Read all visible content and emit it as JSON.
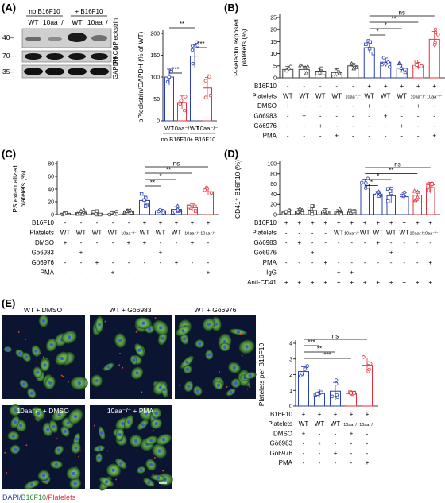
{
  "colors": {
    "blue": "#2a3fb2",
    "red": "#e8303c",
    "green": "#1f8f2f",
    "gray": "#444444"
  },
  "panels": {
    "A": {
      "label": "(A)",
      "blot": {
        "group_no": "no B16F10",
        "group_plus": "+ B16F10",
        "lanes": [
          "WT",
          "10aa⁻/⁻",
          "WT",
          "10aa⁻/⁻"
        ],
        "markers": [
          "40–",
          "70–",
          "35–"
        ],
        "bands": [
          "pPleckstrin",
          "PKCδ",
          "GAPDH"
        ]
      },
      "ylabel": "pPleckstrin/GAPDH (% of WT)",
      "ticks": [
        "0",
        "50",
        "100",
        "150",
        "200"
      ],
      "xtick_labels": [
        "WT",
        "10aa⁻/⁻",
        "WT",
        "10aa⁻/⁻"
      ],
      "group_labels": [
        "no B16F10",
        "+ B16F10"
      ],
      "sig": [
        "**",
        "***",
        "***"
      ],
      "chart_data": {
        "type": "bar",
        "categories": [
          "WT no B16F10",
          "10aa-/- no B16F10",
          "WT + B16F10",
          "10aa-/- + B16F10"
        ],
        "values": [
          100,
          42,
          148,
          75
        ],
        "ylim": [
          0,
          200
        ]
      }
    },
    "B": {
      "label": "(B)",
      "ylabel": "P-selectin exposed\nplatelets (%)",
      "ticks": [
        "0",
        "5",
        "10",
        "15",
        "20",
        "25"
      ],
      "sig": [
        "ns",
        "**",
        "*",
        "*"
      ],
      "rows": [
        {
          "name": "B16F10",
          "vals": [
            "-",
            "-",
            "-",
            "-",
            "-",
            "+",
            "+",
            "+",
            "+",
            "+"
          ]
        },
        {
          "name": "Platelets",
          "vals": [
            "WT",
            "WT",
            "WT",
            "WT",
            "10aa⁻/⁻",
            "WT",
            "WT",
            "WT",
            "10aa⁻/⁻",
            "10aa⁻/⁻"
          ]
        },
        {
          "name": "DMSO",
          "vals": [
            "+",
            "-",
            "-",
            "-",
            "-",
            "+",
            "-",
            "-",
            "+",
            "-"
          ]
        },
        {
          "name": "Gö6983",
          "vals": [
            "-",
            "+",
            "-",
            "-",
            "-",
            "-",
            "+",
            "-",
            "-",
            "-"
          ]
        },
        {
          "name": "Gö6976",
          "vals": [
            "-",
            "-",
            "+",
            "-",
            "-",
            "-",
            "-",
            "+",
            "-",
            "-"
          ]
        },
        {
          "name": "PMA",
          "vals": [
            "-",
            "-",
            "-",
            "+",
            "-",
            "-",
            "-",
            "-",
            "-",
            "+"
          ]
        }
      ],
      "chart_data": {
        "type": "bar",
        "values": [
          3.5,
          3.5,
          2.8,
          2.2,
          5.0,
          12.5,
          6.5,
          4.0,
          5.0,
          16.0
        ],
        "ylim": [
          0,
          25
        ]
      }
    },
    "C": {
      "label": "(C)",
      "ylabel": "PS externalized\nplatelets (%)",
      "ticks": [
        "0",
        "20",
        "40",
        "60",
        "80"
      ],
      "sig": [
        "ns",
        "**",
        "*",
        "**"
      ],
      "rows": [
        {
          "name": "B16F10",
          "vals": [
            "-",
            "-",
            "-",
            "-",
            "-",
            "+",
            "+",
            "+",
            "+",
            "+"
          ]
        },
        {
          "name": "Platelets",
          "vals": [
            "WT",
            "WT",
            "WT",
            "WT",
            "10aa⁻/⁻",
            "WT",
            "WT",
            "WT",
            "10aa⁻/⁻",
            "10aa⁻/⁻"
          ]
        },
        {
          "name": "DMSO",
          "vals": [
            "+",
            "-",
            "-",
            "-",
            "+",
            "+",
            "-",
            "-",
            "+",
            "-"
          ]
        },
        {
          "name": "Gö6983",
          "vals": [
            "-",
            "+",
            "-",
            "-",
            "-",
            "-",
            "+",
            "-",
            "-",
            "-"
          ]
        },
        {
          "name": "Gö6976",
          "vals": [
            "-",
            "-",
            "+",
            "-",
            "-",
            "-",
            "-",
            "+",
            "-",
            "-"
          ]
        },
        {
          "name": "PMA",
          "vals": [
            "-",
            "-",
            "-",
            "+",
            "-",
            "-",
            "-",
            "-",
            "-",
            "+"
          ]
        }
      ],
      "chart_data": {
        "type": "bar",
        "values": [
          2,
          3,
          2,
          1,
          5,
          22,
          6,
          8,
          11,
          36
        ],
        "ylim": [
          0,
          80
        ]
      }
    },
    "D": {
      "label": "(D)",
      "ylabel": "CD41⁺ B16F10 (%)",
      "ticks": [
        "0",
        "20",
        "40",
        "60",
        "80",
        "100"
      ],
      "sig": [
        "ns",
        "**",
        "*",
        "*"
      ],
      "rows": [
        {
          "name": "B16F10",
          "vals": [
            "+",
            "+",
            "+",
            "+",
            "+",
            "+",
            "+",
            "+",
            "+",
            "+",
            "+",
            "+"
          ]
        },
        {
          "name": "Platelets",
          "vals": [
            "-",
            "-",
            "-",
            "-",
            "WT",
            "10aa⁻/⁻",
            "WT",
            "WT",
            "WT",
            "WT",
            "10aa⁻/⁻",
            "10aa⁻/⁻"
          ]
        },
        {
          "name": "Gö6983",
          "vals": [
            "-",
            "+",
            "-",
            "-",
            "-",
            "-",
            "-",
            "+",
            "-",
            "-",
            "-",
            "-"
          ]
        },
        {
          "name": "Gö6976",
          "vals": [
            "-",
            "-",
            "+",
            "-",
            "-",
            "-",
            "-",
            "-",
            "+",
            "-",
            "-",
            "-"
          ]
        },
        {
          "name": "PMA",
          "vals": [
            "-",
            "-",
            "-",
            "+",
            "-",
            "-",
            "-",
            "-",
            "-",
            "-",
            "-",
            "+"
          ]
        },
        {
          "name": "IgG",
          "vals": [
            "-",
            "-",
            "-",
            "-",
            "+",
            "+",
            "-",
            "-",
            "-",
            "-",
            "-",
            "-"
          ]
        },
        {
          "name": "Anti-CD41",
          "vals": [
            "+",
            "+",
            "+",
            "+",
            "+",
            "+",
            "+",
            "+",
            "+",
            "+",
            "+",
            "+"
          ]
        }
      ],
      "chart_data": {
        "type": "bar",
        "values": [
          5,
          7,
          8,
          5,
          5,
          5,
          60,
          40,
          37,
          35,
          38,
          53
        ],
        "ylim": [
          0,
          100
        ]
      }
    },
    "E": {
      "label": "(E)",
      "images": [
        "WT + DMSO",
        "WT + Gö6983",
        "WT + Gö6976",
        "10aa⁻/⁻ + DMSO",
        "10aa⁻/⁻ + PMA"
      ],
      "stain_dapi": "DAPI/",
      "stain_b16": "B16F10",
      "stain_plt": "/Platelets",
      "ylabel": "Platelets per B16F10",
      "ticks": [
        "0",
        "1",
        "2",
        "3",
        "4"
      ],
      "sig": [
        "ns",
        "***",
        "**",
        "***"
      ],
      "rows": [
        {
          "name": "B16F10",
          "vals": [
            "+",
            "+",
            "+",
            "+",
            "+"
          ]
        },
        {
          "name": "Platelets",
          "vals": [
            "WT",
            "WT",
            "WT",
            "10aa⁻/⁻",
            "10aa⁻/⁻"
          ]
        },
        {
          "name": "DMSO",
          "vals": [
            "+",
            "-",
            "-",
            "+",
            "-"
          ]
        },
        {
          "name": "Gö6983",
          "vals": [
            "-",
            "+",
            "-",
            "-",
            "-"
          ]
        },
        {
          "name": "Gö6976",
          "vals": [
            "-",
            "-",
            "+",
            "-",
            "-"
          ]
        },
        {
          "name": "PMA",
          "vals": [
            "-",
            "-",
            "-",
            "-",
            "+"
          ]
        }
      ],
      "chart_data": {
        "type": "bar",
        "values": [
          2.2,
          0.8,
          0.95,
          0.8,
          2.6
        ],
        "ylim": [
          0,
          4
        ]
      }
    }
  }
}
